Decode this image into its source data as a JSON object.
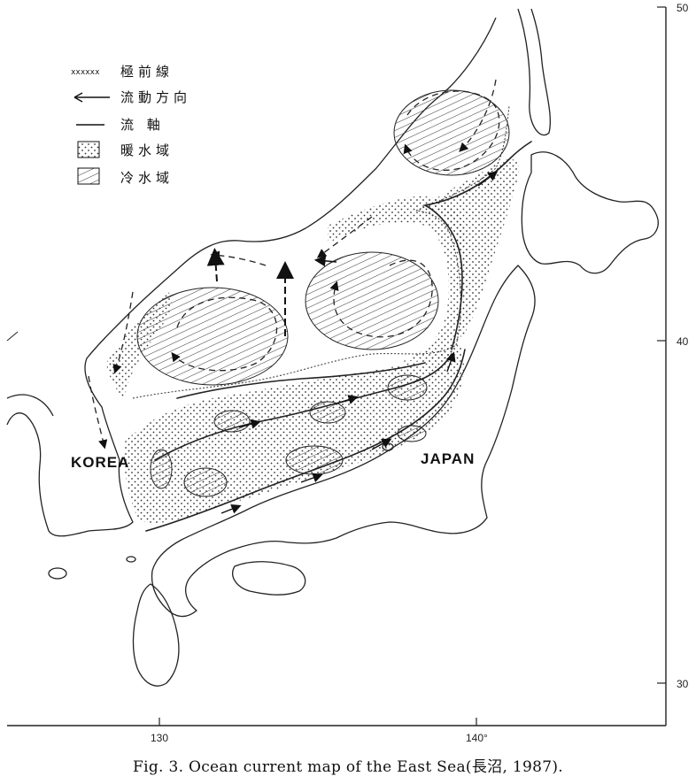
{
  "legend": {
    "front_label": "極前線",
    "flow_direction_label": "流動方向",
    "flow_axis_label": "流 軸",
    "warm_water_label": "暖水域",
    "cold_water_label": "冷水域"
  },
  "places": {
    "korea": "KOREA",
    "japan": "JAPAN"
  },
  "axes": {
    "lon_130": "130",
    "lon_140": "140°",
    "lat_50": "50",
    "lat_40": "40",
    "lat_30": "30"
  },
  "caption": "Fig. 3. Ocean current map of the East Sea(長沼, 1987)."
}
